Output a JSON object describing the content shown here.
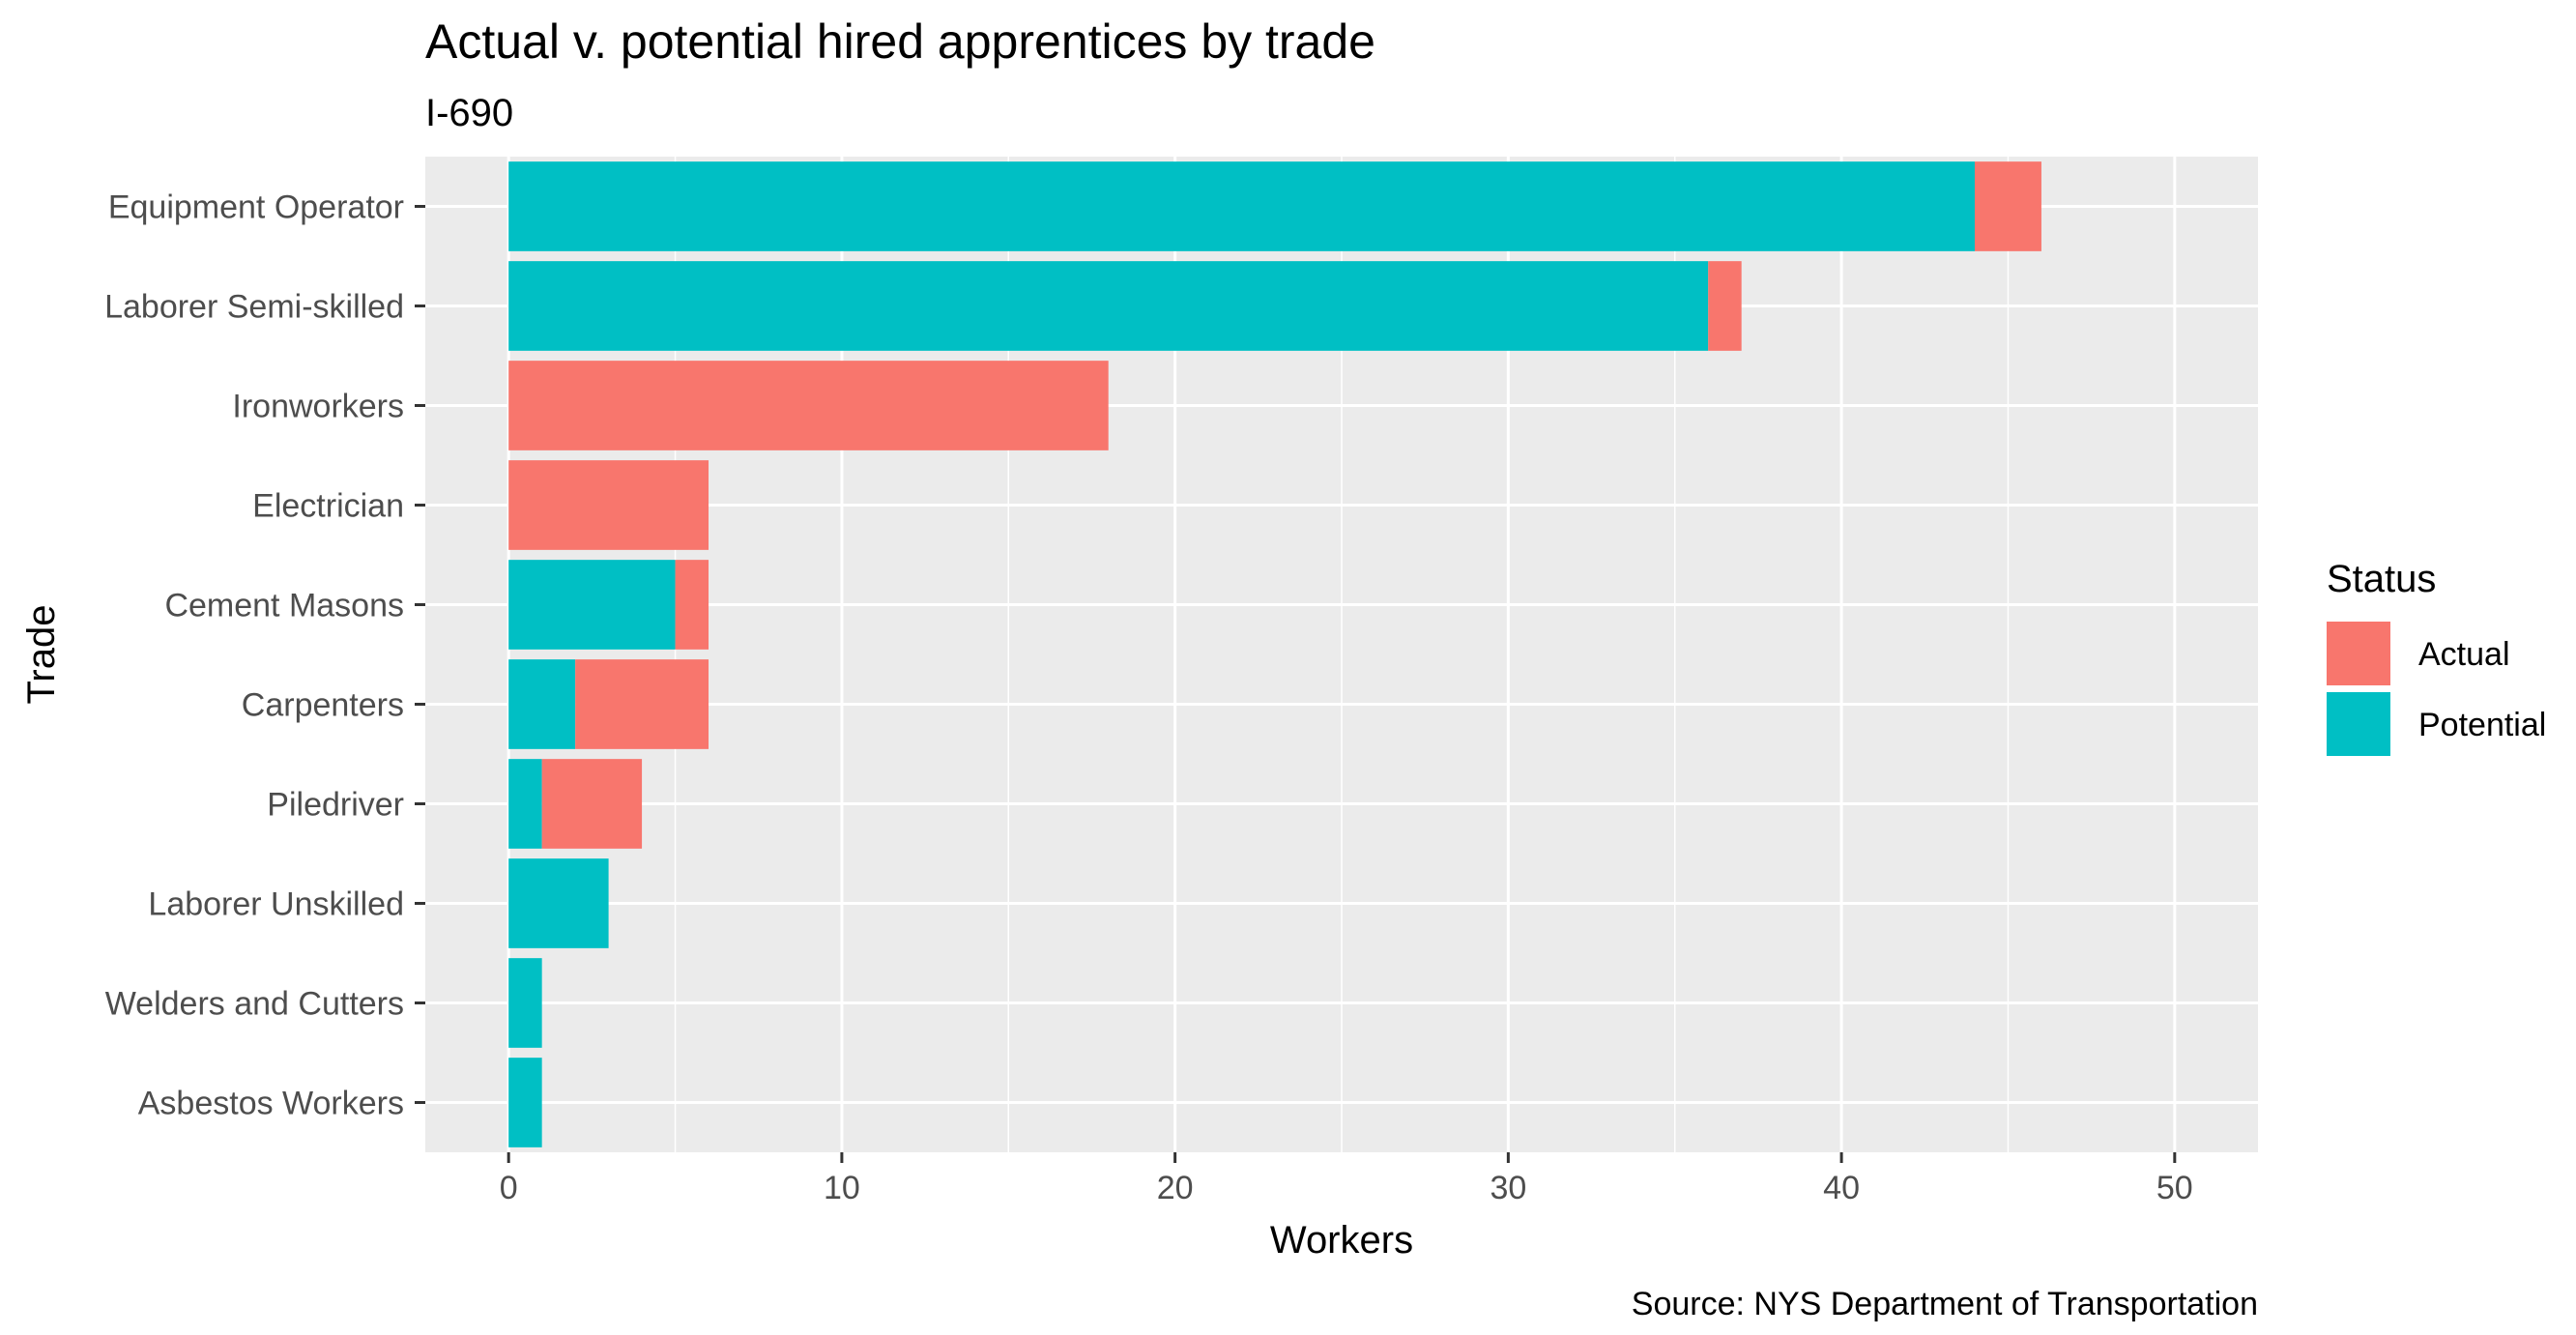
{
  "chart_data": {
    "type": "bar",
    "orientation": "horizontal",
    "stacked": true,
    "title": "Actual v. potential hired apprentices by trade",
    "subtitle": "I-690",
    "xlabel": "Workers",
    "ylabel": "Trade",
    "caption": "Source: NYS Department of Transportation",
    "xlim": [
      -2.5,
      52.5
    ],
    "xticks": [
      0,
      10,
      20,
      30,
      40,
      50
    ],
    "grid": true,
    "legend": {
      "title": "Status",
      "placement": "right",
      "entries": [
        {
          "label": "Actual",
          "color": "#F8766D"
        },
        {
          "label": "Potential",
          "color": "#00BFC4"
        }
      ]
    },
    "categories": [
      "Equipment Operator",
      "Laborer Semi-skilled",
      "Ironworkers",
      "Electrician",
      "Cement Masons",
      "Carpenters",
      "Piledriver",
      "Laborer Unskilled",
      "Welders and Cutters",
      "Asbestos Workers"
    ],
    "series": [
      {
        "name": "Potential",
        "color": "#00BFC4",
        "values": [
          44,
          36,
          0,
          0,
          5,
          2,
          1,
          3,
          1,
          1
        ]
      },
      {
        "name": "Actual",
        "color": "#F8766D",
        "values": [
          2,
          1,
          18,
          6,
          1,
          4,
          3,
          0,
          0,
          0
        ]
      }
    ]
  }
}
